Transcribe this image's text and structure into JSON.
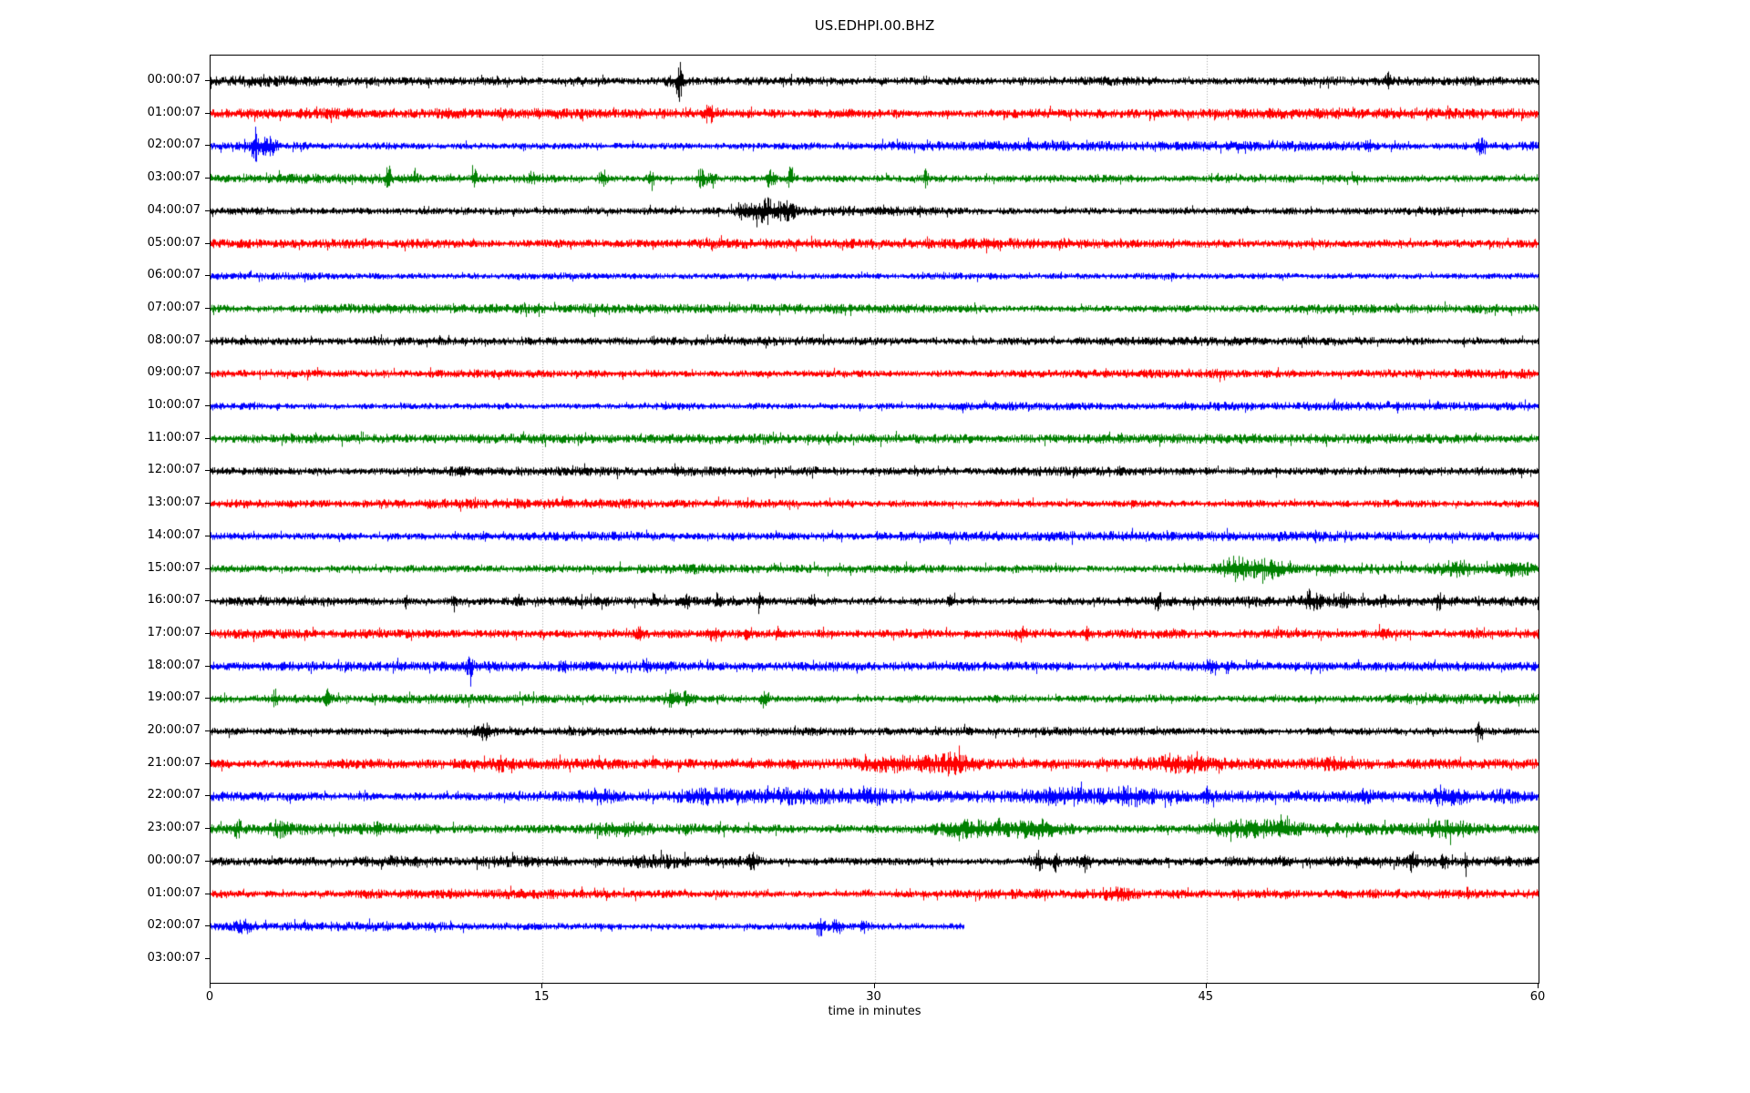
{
  "window": {
    "title": "US.EDHPI.00.BHZ"
  },
  "chart_data": {
    "type": "line",
    "subtype": "seismogram-dayplot",
    "title": "US.EDHPI.00.BHZ",
    "xlabel": "time in minutes",
    "xlim": [
      0,
      60
    ],
    "xticks": [
      0,
      15,
      30,
      45,
      60
    ],
    "grid": {
      "vertical_at_minutes": [
        15,
        30,
        45
      ],
      "style": "dotted",
      "color": "#a8a8a8"
    },
    "axis_color": "#000000",
    "background_color": "#ffffff",
    "minutes_per_row": 60,
    "colors_cycle": [
      "#000000",
      "#ff0000",
      "#0000ff",
      "#008000"
    ],
    "legend": "none",
    "rows": [
      {
        "label": "00:00:07",
        "color": "#000000",
        "duration_min": 60,
        "base_amp": 5,
        "events": [
          {
            "t": 2.5,
            "a": 2,
            "w": 1.5
          },
          {
            "t": 21.0,
            "a": 5,
            "w": 0.3
          },
          {
            "t": 21.2,
            "a": 17,
            "w": 0.07
          },
          {
            "t": 53.2,
            "a": 6,
            "w": 0.08
          }
        ]
      },
      {
        "label": "01:00:07",
        "color": "#ff0000",
        "duration_min": 60,
        "base_amp": 5,
        "events": [
          {
            "t": 22.5,
            "a": 8,
            "w": 0.15
          }
        ]
      },
      {
        "label": "02:00:07",
        "color": "#0000ff",
        "duration_min": 60,
        "base_amp": 4.5,
        "events": [
          {
            "t": 2.0,
            "a": 15,
            "w": 0.12
          },
          {
            "t": 2.6,
            "a": 8,
            "w": 0.25
          },
          {
            "t": 52.3,
            "a": 8,
            "w": 0.06
          },
          {
            "t": 57.4,
            "a": 9,
            "w": 0.12
          }
        ]
      },
      {
        "label": "03:00:07",
        "color": "#008000",
        "duration_min": 60,
        "base_amp": 4.5,
        "events": [
          {
            "t": 8.0,
            "a": 16,
            "w": 0.08
          },
          {
            "t": 9.2,
            "a": 7,
            "w": 0.1
          },
          {
            "t": 11.9,
            "a": 11,
            "w": 0.08
          },
          {
            "t": 14.5,
            "a": 5,
            "w": 0.1
          },
          {
            "t": 17.7,
            "a": 9,
            "w": 0.12
          },
          {
            "t": 19.9,
            "a": 11,
            "w": 0.1
          },
          {
            "t": 22.2,
            "a": 9,
            "w": 0.15
          },
          {
            "t": 22.7,
            "a": 8,
            "w": 0.1
          },
          {
            "t": 25.3,
            "a": 10,
            "w": 0.12
          },
          {
            "t": 26.2,
            "a": 12,
            "w": 0.1
          },
          {
            "t": 32.3,
            "a": 8,
            "w": 0.07
          }
        ]
      },
      {
        "label": "04:00:07",
        "color": "#000000",
        "duration_min": 60,
        "base_amp": 4.5,
        "events": [
          {
            "t": 24.2,
            "a": 8,
            "w": 0.3
          },
          {
            "t": 25.1,
            "a": 11,
            "w": 0.3
          },
          {
            "t": 26.0,
            "a": 9,
            "w": 0.25
          }
        ]
      },
      {
        "label": "05:00:07",
        "color": "#ff0000",
        "duration_min": 60,
        "base_amp": 5,
        "events": []
      },
      {
        "label": "06:00:07",
        "color": "#0000ff",
        "duration_min": 60,
        "base_amp": 4,
        "events": []
      },
      {
        "label": "07:00:07",
        "color": "#008000",
        "duration_min": 60,
        "base_amp": 4.5,
        "events": []
      },
      {
        "label": "08:00:07",
        "color": "#000000",
        "duration_min": 60,
        "base_amp": 4.5,
        "events": []
      },
      {
        "label": "09:00:07",
        "color": "#ff0000",
        "duration_min": 60,
        "base_amp": 4.5,
        "events": []
      },
      {
        "label": "10:00:07",
        "color": "#0000ff",
        "duration_min": 60,
        "base_amp": 4,
        "events": []
      },
      {
        "label": "11:00:07",
        "color": "#008000",
        "duration_min": 60,
        "base_amp": 4.5,
        "events": []
      },
      {
        "label": "12:00:07",
        "color": "#000000",
        "duration_min": 60,
        "base_amp": 4.5,
        "events": []
      },
      {
        "label": "13:00:07",
        "color": "#ff0000",
        "duration_min": 60,
        "base_amp": 4.5,
        "events": []
      },
      {
        "label": "14:00:07",
        "color": "#0000ff",
        "duration_min": 60,
        "base_amp": 4.5,
        "events": []
      },
      {
        "label": "15:00:07",
        "color": "#008000",
        "duration_min": 60,
        "base_amp": 4.5,
        "events": [
          {
            "t": 46.3,
            "a": 10,
            "w": 0.5
          },
          {
            "t": 47.8,
            "a": 7,
            "w": 0.5
          },
          {
            "t": 56.3,
            "a": 6,
            "w": 0.5
          },
          {
            "t": 58.8,
            "a": 6,
            "w": 0.6
          }
        ]
      },
      {
        "label": "16:00:07",
        "color": "#000000",
        "duration_min": 60,
        "base_amp": 4.5,
        "events": [
          {
            "t": 8.8,
            "a": 6,
            "w": 0.06
          },
          {
            "t": 11.0,
            "a": 9,
            "w": 0.07
          },
          {
            "t": 13.9,
            "a": 7,
            "w": 0.07
          },
          {
            "t": 20.0,
            "a": 6,
            "w": 0.1
          },
          {
            "t": 21.5,
            "a": 8,
            "w": 0.08
          },
          {
            "t": 22.9,
            "a": 6,
            "w": 0.08
          },
          {
            "t": 24.8,
            "a": 6,
            "w": 0.08
          },
          {
            "t": 27.2,
            "a": 5,
            "w": 0.1
          },
          {
            "t": 33.5,
            "a": 6,
            "w": 0.12
          },
          {
            "t": 42.8,
            "a": 7,
            "w": 0.07
          },
          {
            "t": 49.8,
            "a": 7,
            "w": 0.25
          },
          {
            "t": 51.2,
            "a": 7,
            "w": 0.15
          },
          {
            "t": 53.0,
            "a": 6,
            "w": 0.08
          },
          {
            "t": 55.5,
            "a": 5,
            "w": 0.12
          }
        ]
      },
      {
        "label": "17:00:07",
        "color": "#ff0000",
        "duration_min": 60,
        "base_amp": 5,
        "events": [
          {
            "t": 19.4,
            "a": 6,
            "w": 0.12
          },
          {
            "t": 22.7,
            "a": 6,
            "w": 0.12
          },
          {
            "t": 24.3,
            "a": 5,
            "w": 0.12
          },
          {
            "t": 25.6,
            "a": 6,
            "w": 0.08
          },
          {
            "t": 36.6,
            "a": 5,
            "w": 0.2
          },
          {
            "t": 39.5,
            "a": 6,
            "w": 0.12
          },
          {
            "t": 53.0,
            "a": 5,
            "w": 0.15
          }
        ]
      },
      {
        "label": "18:00:07",
        "color": "#0000ff",
        "duration_min": 60,
        "base_amp": 4.5,
        "events": [
          {
            "t": 11.7,
            "a": 9,
            "w": 0.1
          },
          {
            "t": 16.0,
            "a": 5,
            "w": 0.1
          },
          {
            "t": 19.7,
            "a": 5,
            "w": 0.1
          },
          {
            "t": 45.2,
            "a": 8,
            "w": 0.15
          },
          {
            "t": 45.9,
            "a": 5,
            "w": 0.1
          }
        ]
      },
      {
        "label": "19:00:07",
        "color": "#008000",
        "duration_min": 60,
        "base_amp": 4.5,
        "events": [
          {
            "t": 2.9,
            "a": 7,
            "w": 0.08
          },
          {
            "t": 5.3,
            "a": 9,
            "w": 0.08
          },
          {
            "t": 20.8,
            "a": 6,
            "w": 0.25
          },
          {
            "t": 21.5,
            "a": 5,
            "w": 0.15
          },
          {
            "t": 25.0,
            "a": 7,
            "w": 0.12
          }
        ]
      },
      {
        "label": "20:00:07",
        "color": "#000000",
        "duration_min": 60,
        "base_amp": 4.5,
        "events": [
          {
            "t": 12.4,
            "a": 8,
            "w": 0.2
          },
          {
            "t": 57.3,
            "a": 7,
            "w": 0.1
          }
        ]
      },
      {
        "label": "21:00:07",
        "color": "#ff0000",
        "duration_min": 60,
        "base_amp": 5,
        "events": [
          {
            "t": 13.1,
            "a": 4,
            "w": 0.15
          },
          {
            "t": 31.0,
            "a": 6,
            "w": 1.2
          },
          {
            "t": 33.5,
            "a": 7,
            "w": 0.8
          },
          {
            "t": 44.0,
            "a": 5,
            "w": 1.0
          },
          {
            "t": 50.5,
            "a": 4,
            "w": 0.8
          }
        ]
      },
      {
        "label": "22:00:07",
        "color": "#0000ff",
        "duration_min": 60,
        "base_amp": 5.5,
        "events": [
          {
            "t": 17.5,
            "a": 5,
            "w": 0.5
          },
          {
            "t": 22.5,
            "a": 5,
            "w": 1.0
          },
          {
            "t": 26.0,
            "a": 5,
            "w": 1.2
          },
          {
            "t": 29.5,
            "a": 5,
            "w": 0.8
          },
          {
            "t": 38.5,
            "a": 5,
            "w": 1.0
          },
          {
            "t": 41.5,
            "a": 6,
            "w": 0.8
          },
          {
            "t": 45.0,
            "a": 7,
            "w": 0.15
          },
          {
            "t": 52.0,
            "a": 4,
            "w": 0.5
          },
          {
            "t": 56.0,
            "a": 6,
            "w": 0.8
          },
          {
            "t": 58.5,
            "a": 5,
            "w": 0.5
          }
        ]
      },
      {
        "label": "23:00:07",
        "color": "#008000",
        "duration_min": 60,
        "base_amp": 5.5,
        "events": [
          {
            "t": 1.2,
            "a": 7,
            "w": 0.1
          },
          {
            "t": 3.0,
            "a": 5,
            "w": 0.3
          },
          {
            "t": 7.5,
            "a": 6,
            "w": 0.08
          },
          {
            "t": 18.5,
            "a": 5,
            "w": 0.8
          },
          {
            "t": 34.5,
            "a": 6,
            "w": 1.2
          },
          {
            "t": 37.5,
            "a": 6,
            "w": 0.8
          },
          {
            "t": 46.5,
            "a": 6,
            "w": 1.0
          },
          {
            "t": 48.5,
            "a": 5,
            "w": 0.6
          },
          {
            "t": 56.0,
            "a": 5,
            "w": 0.8
          }
        ]
      },
      {
        "label": "00:00:07",
        "color": "#000000",
        "duration_min": 60,
        "base_amp": 4.5,
        "events": [
          {
            "t": 8.0,
            "a": 3,
            "w": 1.5
          },
          {
            "t": 14.0,
            "a": 3,
            "w": 1.5
          },
          {
            "t": 20.0,
            "a": 3,
            "w": 1.0
          },
          {
            "t": 24.5,
            "a": 6,
            "w": 0.2
          },
          {
            "t": 37.4,
            "a": 12,
            "w": 0.12
          },
          {
            "t": 38.2,
            "a": 9,
            "w": 0.1
          },
          {
            "t": 39.5,
            "a": 5,
            "w": 0.2
          },
          {
            "t": 54.3,
            "a": 8,
            "w": 0.15
          },
          {
            "t": 55.7,
            "a": 9,
            "w": 0.12
          },
          {
            "t": 56.7,
            "a": 7,
            "w": 0.1
          }
        ]
      },
      {
        "label": "01:00:07",
        "color": "#ff0000",
        "duration_min": 60,
        "base_amp": 4.5,
        "events": [
          {
            "t": 41.0,
            "a": 3,
            "w": 0.5
          }
        ]
      },
      {
        "label": "02:00:07",
        "color": "#0000ff",
        "duration_min": 34,
        "base_amp": 4.5,
        "events": [
          {
            "t": 1.5,
            "a": 4,
            "w": 0.3
          },
          {
            "t": 27.5,
            "a": 8,
            "w": 0.2
          },
          {
            "t": 28.3,
            "a": 7,
            "w": 0.15
          },
          {
            "t": 29.5,
            "a": 6,
            "w": 0.1
          }
        ]
      },
      {
        "label": "03:00:07",
        "color": "#008000",
        "duration_min": 0,
        "base_amp": 0,
        "events": []
      }
    ]
  }
}
